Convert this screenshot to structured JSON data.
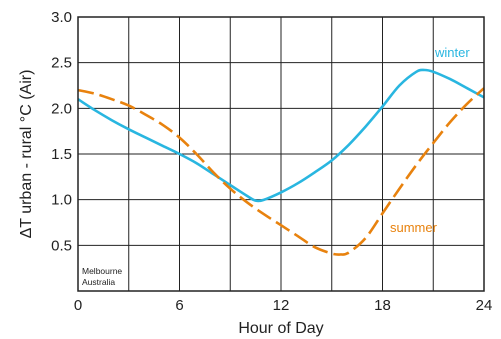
{
  "chart_data": {
    "type": "line",
    "xlabel": "Hour of Day",
    "ylabel": "ΔT urban - rural °C (Air)",
    "xlim": [
      0,
      24
    ],
    "ylim": [
      0,
      3.0
    ],
    "xticks": [
      0,
      6,
      12,
      18,
      24
    ],
    "yticks": [
      0.5,
      1.0,
      1.5,
      2.0,
      2.5,
      3.0
    ],
    "ytick_labels": [
      "0.5",
      "1.0",
      "1.5",
      "2.0",
      "2.5",
      "3.0"
    ],
    "grid": true,
    "annotation": [
      "Melbourne",
      "Australia"
    ],
    "series": [
      {
        "name": "winter",
        "color": "#29b6e0",
        "style": "solid",
        "x": [
          0,
          1,
          2,
          3,
          4,
          5,
          6,
          7,
          8,
          9,
          10,
          10.5,
          11,
          12,
          13,
          14,
          15,
          16,
          17,
          18,
          19,
          20,
          20.5,
          21,
          22,
          23,
          24
        ],
        "y": [
          2.1,
          1.98,
          1.87,
          1.77,
          1.68,
          1.59,
          1.5,
          1.4,
          1.28,
          1.16,
          1.04,
          0.99,
          1.0,
          1.08,
          1.18,
          1.3,
          1.43,
          1.6,
          1.8,
          2.02,
          2.25,
          2.4,
          2.42,
          2.4,
          2.32,
          2.22,
          2.12
        ]
      },
      {
        "name": "summer",
        "color": "#e8820e",
        "style": "dashed",
        "x": [
          0,
          1,
          2,
          3,
          4,
          5,
          6,
          7,
          8,
          9,
          10,
          11,
          12,
          13,
          14,
          15,
          15.5,
          16,
          17,
          18,
          19,
          20,
          21,
          22,
          23,
          24
        ],
        "y": [
          2.2,
          2.16,
          2.1,
          2.03,
          1.93,
          1.82,
          1.68,
          1.5,
          1.3,
          1.12,
          0.97,
          0.84,
          0.72,
          0.6,
          0.48,
          0.41,
          0.4,
          0.42,
          0.58,
          0.85,
          1.12,
          1.38,
          1.62,
          1.85,
          2.05,
          2.22
        ]
      }
    ]
  }
}
